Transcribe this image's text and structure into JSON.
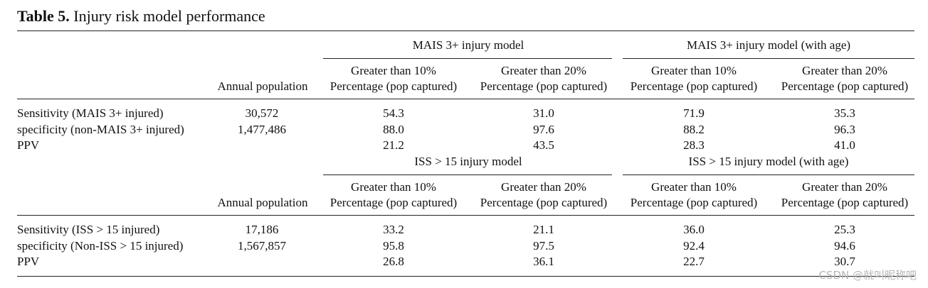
{
  "caption": {
    "label": "Table 5.",
    "title": " Injury risk model performance"
  },
  "sections": [
    {
      "models": [
        "MAIS 3+ injury model",
        "MAIS 3+ injury model (with age)"
      ],
      "subheaders": {
        "annual_population": "Annual population",
        "thresholds": [
          "Greater than 10%",
          "Greater than 20%",
          "Greater than 10%",
          "Greater than 20%"
        ],
        "percentage": [
          "Percentage (pop captured)",
          "Percentage (pop captured)",
          "Percentage (pop captured)",
          "Percentage (pop captured)"
        ]
      },
      "rows": [
        {
          "label": "Sensitivity (MAIS 3+ injured)",
          "population": "30,572",
          "values": [
            "54.3",
            "31.0",
            "71.9",
            "35.3"
          ]
        },
        {
          "label": "specificity (non-MAIS 3+ injured)",
          "population": "1,477,486",
          "values": [
            "88.0",
            "97.6",
            "88.2",
            "96.3"
          ]
        },
        {
          "label": "PPV",
          "population": "",
          "values": [
            "21.2",
            "43.5",
            "28.3",
            "41.0"
          ]
        }
      ]
    },
    {
      "models": [
        "ISS > 15 injury model",
        "ISS > 15 injury model (with age)"
      ],
      "subheaders": {
        "annual_population": "Annual population",
        "thresholds": [
          "Greater than 10%",
          "Greater than 20%",
          "Greater than 10%",
          "Greater than 20%"
        ],
        "percentage": [
          "Percentage (pop captured)",
          "Percentage (pop captured)",
          "Percentage (pop captured)",
          "Percentage (pop captured)"
        ]
      },
      "rows": [
        {
          "label": "Sensitivity (ISS > 15 injured)",
          "population": "17,186",
          "values": [
            "33.2",
            "21.1",
            "36.0",
            "25.3"
          ]
        },
        {
          "label": "specificity (Non-ISS > 15 injured)",
          "population": "1,567,857",
          "values": [
            "95.8",
            "97.5",
            "92.4",
            "94.6"
          ]
        },
        {
          "label": "PPV",
          "population": "",
          "values": [
            "26.8",
            "36.1",
            "22.7",
            "30.7"
          ]
        }
      ]
    }
  ],
  "watermark": "CSDN @就叫昵称吧"
}
